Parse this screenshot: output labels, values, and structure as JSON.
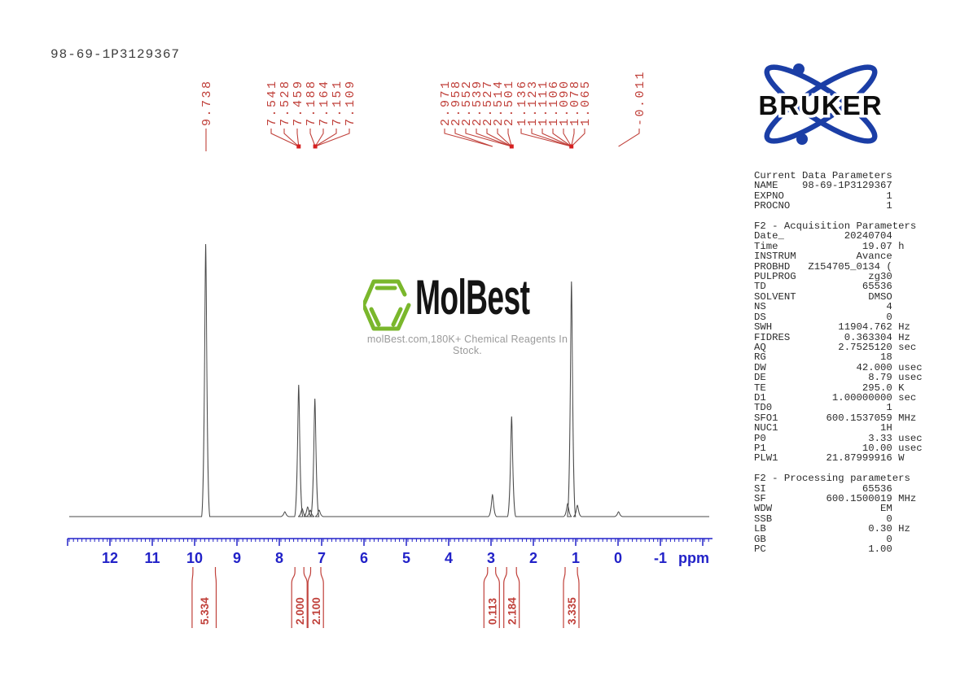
{
  "title": "98-69-1P3129367",
  "colors": {
    "axis_blue": "#2222c8",
    "peak_red": "#c0403a",
    "marker_red": "#d62020",
    "trace": "#4a4a4a",
    "hexagon_green": "#7ab72c",
    "bruker_blue": "#1b3ea6"
  },
  "watermark": {
    "brand": "MolBest",
    "tagline": "molBest.com,180K+ Chemical Reagents In Stock."
  },
  "bruker": {
    "wordmark": "BRUKER"
  },
  "chart_data": {
    "type": "line",
    "title": "98-69-1P3129367",
    "xlabel": "ppm",
    "xlim": [
      13.0,
      -2.2
    ],
    "grid": false,
    "x_axis_ticks": [
      12,
      11,
      10,
      9,
      8,
      7,
      6,
      5,
      4,
      3,
      2,
      1,
      0,
      -1
    ],
    "peaks": [
      {
        "ppm": 9.738,
        "intensity": 335
      },
      {
        "ppm": 7.87,
        "intensity": 6
      },
      {
        "ppm": 7.542,
        "intensity": 162
      },
      {
        "ppm": 7.46,
        "intensity": 10
      },
      {
        "ppm": 7.33,
        "intensity": 12
      },
      {
        "ppm": 7.27,
        "intensity": 8
      },
      {
        "ppm": 7.16,
        "intensity": 145
      },
      {
        "ppm": 7.06,
        "intensity": 8
      },
      {
        "ppm": 2.965,
        "intensity": 27
      },
      {
        "ppm": 2.514,
        "intensity": 123
      },
      {
        "ppm": 1.19,
        "intensity": 16
      },
      {
        "ppm": 1.1,
        "intensity": 289
      },
      {
        "ppm": 0.96,
        "intensity": 14
      },
      {
        "ppm": -0.011,
        "intensity": 6
      }
    ],
    "peak_label_groups": [
      {
        "values": [
          "9.738"
        ],
        "target_ppm": 9.738,
        "marker": false
      },
      {
        "values": [
          "7.541",
          "7.528",
          "7.459"
        ],
        "target_ppm": 7.542,
        "marker": true
      },
      {
        "values": [
          "7.188",
          "7.164",
          "7.151",
          "7.109"
        ],
        "target_ppm": 7.152,
        "marker": true
      },
      {
        "values": [
          "2.971",
          "2.958"
        ],
        "target_ppm": 2.965,
        "marker": false
      },
      {
        "values": [
          "2.552",
          "2.539",
          "2.527",
          "2.514",
          "2.501"
        ],
        "target_ppm": 2.514,
        "marker": true
      },
      {
        "values": [
          "1.136",
          "1.123",
          "1.111",
          "1.106",
          "1.090",
          "1.078",
          "1.065"
        ],
        "target_ppm": 1.101,
        "marker": true
      },
      {
        "values": [
          "-0.011"
        ],
        "target_ppm": -0.011,
        "marker": false
      }
    ],
    "integrations": [
      {
        "value": "5.334",
        "from_ppm": 10.04,
        "to_ppm": 9.51
      },
      {
        "value": "2.000",
        "from_ppm": 7.63,
        "to_ppm": 7.42
      },
      {
        "value": "2.100",
        "from_ppm": 7.26,
        "to_ppm": 7.02
      },
      {
        "value": "0.113",
        "from_ppm": 3.08,
        "to_ppm": 2.89
      },
      {
        "value": "2.184",
        "from_ppm": 2.63,
        "to_ppm": 2.4
      },
      {
        "value": "3.335",
        "from_ppm": 1.25,
        "to_ppm": 0.96
      }
    ]
  },
  "parameters": {
    "sections": [
      {
        "header": "Current Data Parameters",
        "rows": [
          [
            "NAME",
            "98-69-1P3129367",
            ""
          ],
          [
            "EXPNO",
            "1",
            ""
          ],
          [
            "PROCNO",
            "1",
            ""
          ]
        ]
      },
      {
        "header": "F2 - Acquisition Parameters",
        "rows": [
          [
            "Date_",
            "20240704",
            ""
          ],
          [
            "Time",
            "19.07",
            "h"
          ],
          [
            "INSTRUM",
            "Avance",
            ""
          ],
          [
            "PROBHD",
            "Z154705_0134 (",
            ""
          ],
          [
            "PULPROG",
            "zg30",
            ""
          ],
          [
            "TD",
            "65536",
            ""
          ],
          [
            "SOLVENT",
            "DMSO",
            ""
          ],
          [
            "NS",
            "4",
            ""
          ],
          [
            "DS",
            "0",
            ""
          ],
          [
            "SWH",
            "11904.762",
            "Hz"
          ],
          [
            "FIDRES",
            "0.363304",
            "Hz"
          ],
          [
            "AQ",
            "2.7525120",
            "sec"
          ],
          [
            "RG",
            "18",
            ""
          ],
          [
            "DW",
            "42.000",
            "usec"
          ],
          [
            "DE",
            "8.79",
            "usec"
          ],
          [
            "TE",
            "295.0",
            "K"
          ],
          [
            "D1",
            "1.00000000",
            "sec"
          ],
          [
            "TD0",
            "1",
            ""
          ],
          [
            "SFO1",
            "600.1537059",
            "MHz"
          ],
          [
            "NUC1",
            "1H",
            ""
          ],
          [
            "P0",
            "3.33",
            "usec"
          ],
          [
            "P1",
            "10.00",
            "usec"
          ],
          [
            "PLW1",
            "21.87999916",
            "W"
          ]
        ]
      },
      {
        "header": "F2 - Processing parameters",
        "rows": [
          [
            "SI",
            "65536",
            ""
          ],
          [
            "SF",
            "600.1500019",
            "MHz"
          ],
          [
            "WDW",
            "EM",
            ""
          ],
          [
            "SSB",
            "0",
            ""
          ],
          [
            "LB",
            "0.30",
            "Hz"
          ],
          [
            "GB",
            "0",
            ""
          ],
          [
            "PC",
            "1.00",
            ""
          ]
        ]
      }
    ]
  }
}
